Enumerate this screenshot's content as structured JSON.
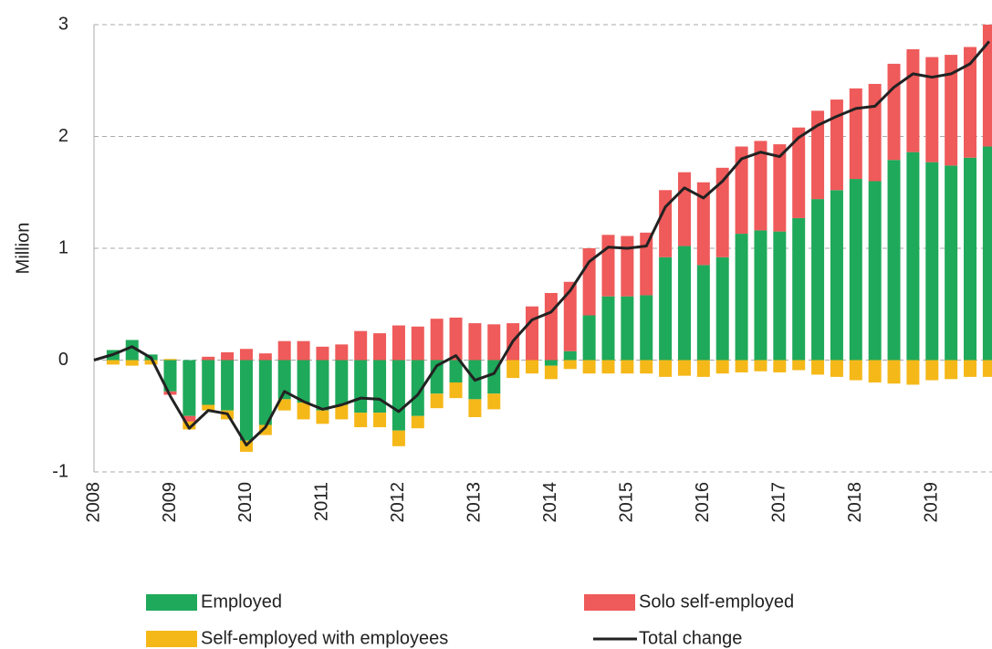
{
  "chart_data": {
    "type": "bar",
    "stacked": true,
    "y_label": "Million",
    "categories": [
      "2008",
      null,
      null,
      null,
      "2009",
      null,
      null,
      null,
      "2010",
      null,
      null,
      null,
      "2011",
      null,
      null,
      null,
      "2012",
      null,
      null,
      null,
      "2013",
      null,
      null,
      null,
      "2014",
      null,
      null,
      null,
      "2015",
      null,
      null,
      null,
      "2016",
      null,
      null,
      null,
      "2017",
      null,
      null,
      null,
      "2018",
      null,
      null,
      null,
      "2019",
      null,
      null,
      null
    ],
    "series": [
      {
        "name": "Employed",
        "color": "#1fa95b",
        "values": [
          0,
          0.09,
          0.18,
          0.05,
          -0.28,
          -0.5,
          -0.4,
          -0.45,
          -0.72,
          -0.58,
          -0.35,
          -0.38,
          -0.45,
          -0.4,
          -0.47,
          -0.47,
          -0.63,
          -0.5,
          -0.3,
          -0.2,
          -0.35,
          -0.3,
          0,
          0,
          -0.05,
          0.08,
          0.4,
          0.57,
          0.57,
          0.58,
          0.92,
          1.02,
          0.85,
          0.92,
          1.13,
          1.16,
          1.15,
          1.27,
          1.44,
          1.52,
          1.62,
          1.6,
          1.79,
          1.86,
          1.77,
          1.74,
          1.81,
          1.91
        ]
      },
      {
        "name": "Solo self-employed",
        "color": "#ef5a5a",
        "values": [
          0,
          0,
          0,
          0,
          -0.03,
          -0.05,
          0.03,
          0.07,
          0.1,
          0.06,
          0.17,
          0.17,
          0.12,
          0.14,
          0.26,
          0.24,
          0.31,
          0.3,
          0.37,
          0.38,
          0.33,
          0.32,
          0.33,
          0.48,
          0.6,
          0.62,
          0.6,
          0.55,
          0.54,
          0.56,
          0.6,
          0.66,
          0.74,
          0.8,
          0.78,
          0.8,
          0.78,
          0.81,
          0.79,
          0.81,
          0.81,
          0.87,
          0.86,
          0.92,
          0.94,
          0.99,
          0.99,
          1.09
        ]
      },
      {
        "name": "Self-employed with employees",
        "color": "#f5b819",
        "values": [
          0,
          -0.04,
          -0.05,
          -0.04,
          0.01,
          -0.07,
          -0.05,
          -0.08,
          -0.1,
          -0.09,
          -0.1,
          -0.15,
          -0.12,
          -0.13,
          -0.13,
          -0.13,
          -0.14,
          -0.11,
          -0.13,
          -0.14,
          -0.16,
          -0.14,
          -0.16,
          -0.12,
          -0.12,
          -0.08,
          -0.12,
          -0.12,
          -0.12,
          -0.12,
          -0.15,
          -0.14,
          -0.15,
          -0.12,
          -0.11,
          -0.1,
          -0.11,
          -0.09,
          -0.13,
          -0.15,
          -0.18,
          -0.2,
          -0.21,
          -0.22,
          -0.18,
          -0.17,
          -0.15,
          -0.15
        ]
      },
      {
        "name": "Total change",
        "type": "line",
        "color": "#222222",
        "values": [
          0,
          0.05,
          0.12,
          0.02,
          -0.32,
          -0.61,
          -0.45,
          -0.48,
          -0.76,
          -0.6,
          -0.28,
          -0.37,
          -0.44,
          -0.4,
          -0.34,
          -0.35,
          -0.46,
          -0.31,
          -0.05,
          0.04,
          -0.18,
          -0.12,
          0.17,
          0.36,
          0.43,
          0.62,
          0.88,
          1.01,
          1.0,
          1.02,
          1.37,
          1.54,
          1.45,
          1.6,
          1.8,
          1.86,
          1.82,
          1.99,
          2.1,
          2.18,
          2.25,
          2.27,
          2.44,
          2.56,
          2.53,
          2.56,
          2.65,
          2.85
        ]
      }
    ],
    "ylim": [
      -1,
      3
    ],
    "yticks": [
      -1,
      0,
      1,
      2,
      3
    ],
    "grid": true
  }
}
